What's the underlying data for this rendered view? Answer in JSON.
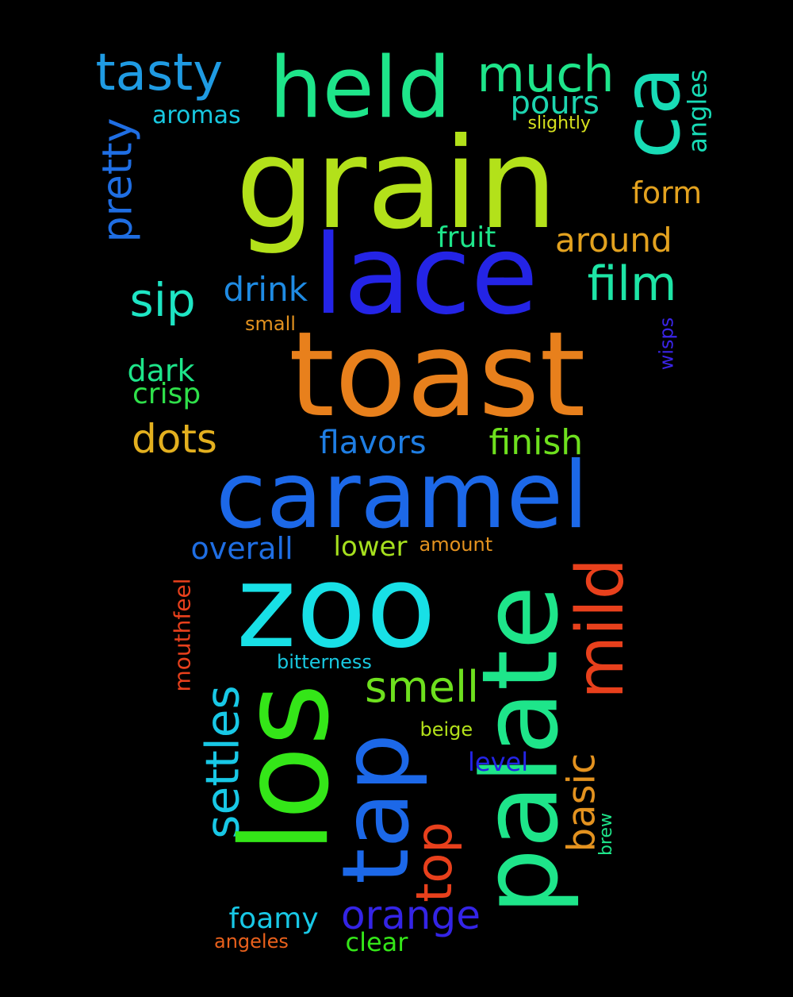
{
  "background": "#000000",
  "words": [
    {
      "text": "grain",
      "color": "#b3e11a"
    },
    {
      "text": "held",
      "color": "#1ee58a"
    },
    {
      "text": "tasty",
      "color": "#1f9be3"
    },
    {
      "text": "much",
      "color": "#1ee58a"
    },
    {
      "text": "ca",
      "color": "#18dcb6"
    },
    {
      "text": "pours",
      "color": "#1ed5b0"
    },
    {
      "text": "aromas",
      "color": "#18c8e0"
    },
    {
      "text": "slightly",
      "color": "#d6e01e"
    },
    {
      "text": "angles",
      "color": "#18dcb6"
    },
    {
      "text": "pretty",
      "color": "#1f6ee3"
    },
    {
      "text": "form",
      "color": "#e3a21f"
    },
    {
      "text": "lace",
      "color": "#2424e6"
    },
    {
      "text": "fruit",
      "color": "#1ee58a"
    },
    {
      "text": "around",
      "color": "#e3a21f"
    },
    {
      "text": "film",
      "color": "#1ee5a6"
    },
    {
      "text": "sip",
      "color": "#1ee5c4"
    },
    {
      "text": "drink",
      "color": "#1f8be3"
    },
    {
      "text": "small",
      "color": "#e3921f"
    },
    {
      "text": "wisps",
      "color": "#3a24e6"
    },
    {
      "text": "toast",
      "color": "#e8801c"
    },
    {
      "text": "dark",
      "color": "#1ee58a"
    },
    {
      "text": "crisp",
      "color": "#2fe04a"
    },
    {
      "text": "dots",
      "color": "#e3b01f"
    },
    {
      "text": "flavors",
      "color": "#1f7ee3"
    },
    {
      "text": "finish",
      "color": "#6ee01e"
    },
    {
      "text": "caramel",
      "color": "#1c68e8"
    },
    {
      "text": "overall",
      "color": "#1f6ee3"
    },
    {
      "text": "lower",
      "color": "#a6e01e"
    },
    {
      "text": "amount",
      "color": "#e3921f"
    },
    {
      "text": "zoo",
      "color": "#18e0e6"
    },
    {
      "text": "palate",
      "color": "#1ee58a"
    },
    {
      "text": "mild",
      "color": "#e8401c"
    },
    {
      "text": "mouthfeel",
      "color": "#e8401c"
    },
    {
      "text": "bitterness",
      "color": "#18c8e0"
    },
    {
      "text": "smell",
      "color": "#6ee01e"
    },
    {
      "text": "settles",
      "color": "#18c8e6"
    },
    {
      "text": "los",
      "color": "#34e618"
    },
    {
      "text": "beige",
      "color": "#b3e11a"
    },
    {
      "text": "tap",
      "color": "#1c68e8"
    },
    {
      "text": "basic",
      "color": "#e3921f"
    },
    {
      "text": "level",
      "color": "#2424e6"
    },
    {
      "text": "brew",
      "color": "#1ee58a"
    },
    {
      "text": "top",
      "color": "#e8401c"
    },
    {
      "text": "foamy",
      "color": "#18c8e6"
    },
    {
      "text": "orange",
      "color": "#3424e6"
    },
    {
      "text": "angeles",
      "color": "#e8601c"
    },
    {
      "text": "clear",
      "color": "#34e618"
    }
  ]
}
